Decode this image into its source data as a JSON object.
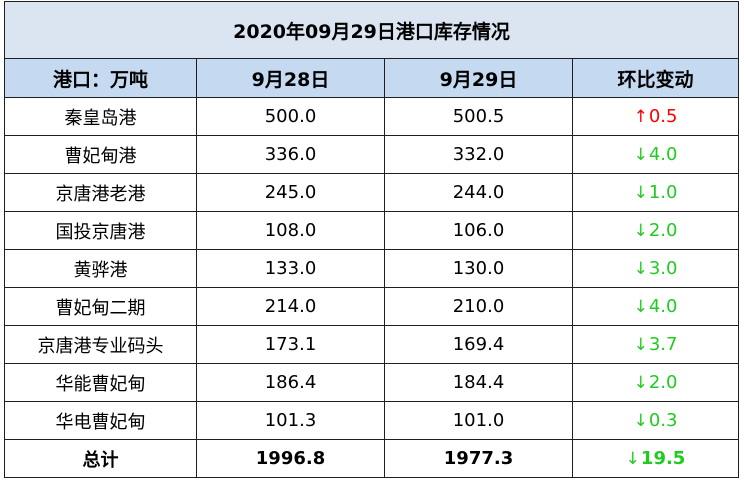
{
  "table": {
    "title": "2020年09月29日港口库存情况",
    "headers": [
      "港口：万吨",
      "9月28日",
      "9月29日",
      "环比变动"
    ],
    "rows": [
      {
        "port": "秦皇岛港",
        "sep28": "500.0",
        "sep29": "500.5",
        "change": "0.5",
        "direction": "up"
      },
      {
        "port": "曹妃甸港",
        "sep28": "336.0",
        "sep29": "332.0",
        "change": "4.0",
        "direction": "down"
      },
      {
        "port": "京唐港老港",
        "sep28": "245.0",
        "sep29": "244.0",
        "change": "1.0",
        "direction": "down"
      },
      {
        "port": "国投京唐港",
        "sep28": "108.0",
        "sep29": "106.0",
        "change": "2.0",
        "direction": "down"
      },
      {
        "port": "黄骅港",
        "sep28": "133.0",
        "sep29": "130.0",
        "change": "3.0",
        "direction": "down"
      },
      {
        "port": "曹妃甸二期",
        "sep28": "214.0",
        "sep29": "210.0",
        "change": "4.0",
        "direction": "down"
      },
      {
        "port": "京唐港专业码头",
        "sep28": "173.1",
        "sep29": "169.4",
        "change": "3.7",
        "direction": "down"
      },
      {
        "port": "华能曹妃甸",
        "sep28": "186.4",
        "sep29": "184.4",
        "change": "2.0",
        "direction": "down"
      },
      {
        "port": "华电曹妃甸",
        "sep28": "101.3",
        "sep29": "101.0",
        "change": "0.3",
        "direction": "down"
      }
    ],
    "total": {
      "label": "总计",
      "sep28": "1996.8",
      "sep29": "1977.3",
      "change": "19.5",
      "direction": "down"
    }
  },
  "symbols": {
    "up": "↑",
    "down": "↓"
  },
  "colors": {
    "title_bg": "#dbe5f1",
    "header_bg": "#c5d9f1",
    "increase": "#ff0000",
    "decrease": "#1fcc1f",
    "border": "#1f1f1f"
  }
}
